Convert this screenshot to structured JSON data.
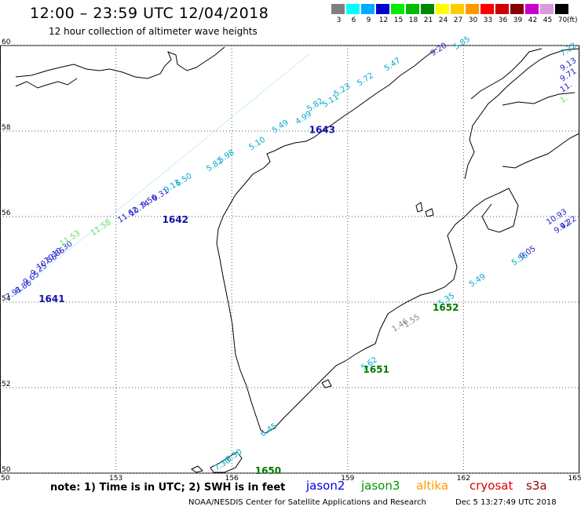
{
  "header": {
    "title": "12:00 – 23:59 UTC 12/04/2018",
    "subtitle": "12 hour collection of altimeter wave heights"
  },
  "legend": {
    "unit": "(ft)",
    "bins": [
      {
        "label": "3",
        "color": "#7f7f7f"
      },
      {
        "label": "6",
        "color": "#00ffff"
      },
      {
        "label": "9",
        "color": "#00aaff"
      },
      {
        "label": "12",
        "color": "#0000cc"
      },
      {
        "label": "15",
        "color": "#00ee00"
      },
      {
        "label": "18",
        "color": "#00bb00"
      },
      {
        "label": "21",
        "color": "#008800"
      },
      {
        "label": "24",
        "color": "#ffff00"
      },
      {
        "label": "27",
        "color": "#ffcc00"
      },
      {
        "label": "30",
        "color": "#ff9900"
      },
      {
        "label": "33",
        "color": "#ff0000"
      },
      {
        "label": "36",
        "color": "#cc0000"
      },
      {
        "label": "39",
        "color": "#880000"
      },
      {
        "label": "42",
        "color": "#cc00cc"
      },
      {
        "label": "45",
        "color": "#dd99dd"
      },
      {
        "label": "70",
        "color": "#000000"
      }
    ]
  },
  "map": {
    "lon_range": [
      150,
      165
    ],
    "lat_range": [
      50,
      60
    ],
    "lon_ticks": [
      "150",
      "153",
      "156",
      "159",
      "162",
      "165"
    ],
    "lat_ticks": [
      "50",
      "52",
      "54",
      "56",
      "58",
      "60"
    ]
  },
  "tracks": [
    {
      "lon0": 150.2,
      "lat0": 54.05,
      "lon1": 158.0,
      "lat1": 59.8,
      "color": "#55ccee"
    }
  ],
  "observations": [
    {
      "text": "7.91",
      "lon": 150.2,
      "lat": 54.05,
      "color": "#2222cc"
    },
    {
      "text": "8.86",
      "lon": 150.45,
      "lat": 54.2,
      "color": "#2222cc"
    },
    {
      "text": "9.65",
      "lon": 150.65,
      "lat": 54.4,
      "color": "#2222cc"
    },
    {
      "text": "9.25",
      "lon": 150.85,
      "lat": 54.6,
      "color": "#2222cc"
    },
    {
      "text": "10.56",
      "lon": 151.0,
      "lat": 54.75,
      "color": "#2222cc"
    },
    {
      "text": "10.86",
      "lon": 151.2,
      "lat": 54.9,
      "color": "#2222cc"
    },
    {
      "text": "10.30",
      "lon": 151.4,
      "lat": 55.05,
      "color": "#2222cc"
    },
    {
      "text": "11.53",
      "lon": 151.6,
      "lat": 55.3,
      "color": "#66dd66"
    },
    {
      "text": "11.58",
      "lon": 152.4,
      "lat": 55.55,
      "color": "#66dd66"
    },
    {
      "text": "11.62",
      "lon": 153.1,
      "lat": 55.85,
      "color": "#2222cc"
    },
    {
      "text": "10.74",
      "lon": 153.4,
      "lat": 56.0,
      "color": "#2222cc"
    },
    {
      "text": "9.56",
      "lon": 153.7,
      "lat": 56.2,
      "color": "#2222cc"
    },
    {
      "text": "9.31",
      "lon": 154.0,
      "lat": 56.35,
      "color": "#2222cc"
    },
    {
      "text": "9.13",
      "lon": 154.3,
      "lat": 56.55,
      "color": "#00aacc"
    },
    {
      "text": "6.50",
      "lon": 154.6,
      "lat": 56.7,
      "color": "#00aacc"
    },
    {
      "text": "5.82",
      "lon": 155.4,
      "lat": 57.05,
      "color": "#00aacc"
    },
    {
      "text": "5.98",
      "lon": 155.7,
      "lat": 57.25,
      "color": "#00aacc"
    },
    {
      "text": "5.10",
      "lon": 156.5,
      "lat": 57.55,
      "color": "#00aacc"
    },
    {
      "text": "5.49",
      "lon": 157.1,
      "lat": 57.95,
      "color": "#00aacc"
    },
    {
      "text": "4.99",
      "lon": 157.7,
      "lat": 58.15,
      "color": "#00aacc"
    },
    {
      "text": "5.11",
      "lon": 158.4,
      "lat": 58.55,
      "color": "#00aacc"
    },
    {
      "text": "5.82",
      "lon": 158.0,
      "lat": 58.45,
      "color": "#00aacc"
    },
    {
      "text": "5.23",
      "lon": 158.7,
      "lat": 58.8,
      "color": "#00aacc"
    },
    {
      "text": "5.72",
      "lon": 159.3,
      "lat": 59.05,
      "color": "#00aacc"
    },
    {
      "text": "5.47",
      "lon": 160.0,
      "lat": 59.4,
      "color": "#00aacc"
    },
    {
      "text": "9.20",
      "lon": 161.2,
      "lat": 59.75,
      "color": "#2222cc"
    },
    {
      "text": "5.85",
      "lon": 161.8,
      "lat": 59.9,
      "color": "#00aacc"
    },
    {
      "text": "6.45",
      "lon": 156.8,
      "lat": 50.85,
      "color": "#00aacc"
    },
    {
      "text": "6.50",
      "lon": 155.9,
      "lat": 50.25,
      "color": "#00aacc"
    },
    {
      "text": "7.30",
      "lon": 155.6,
      "lat": 50.05,
      "color": "#00aacc"
    },
    {
      "text": "5.62",
      "lon": 159.4,
      "lat": 52.4,
      "color": "#00aacc"
    },
    {
      "text": "1.46",
      "lon": 160.2,
      "lat": 53.3,
      "color": "#888888"
    },
    {
      "text": "1.55",
      "lon": 160.5,
      "lat": 53.4,
      "color": "#888888"
    },
    {
      "text": "5.35",
      "lon": 161.4,
      "lat": 53.9,
      "color": "#00aacc"
    },
    {
      "text": "5.49",
      "lon": 162.2,
      "lat": 54.35,
      "color": "#00aacc"
    },
    {
      "text": "5.58",
      "lon": 163.3,
      "lat": 54.85,
      "color": "#00aacc"
    },
    {
      "text": "9.05",
      "lon": 163.5,
      "lat": 55.0,
      "color": "#2222cc"
    },
    {
      "text": "9.42",
      "lon": 164.4,
      "lat": 55.6,
      "color": "#2222cc"
    },
    {
      "text": "9.22",
      "lon": 164.6,
      "lat": 55.7,
      "color": "#2222cc"
    },
    {
      "text": "10.93",
      "lon": 164.2,
      "lat": 55.8,
      "color": "#2222cc"
    },
    {
      "text": "7.32",
      "lon": 164.6,
      "lat": 59.75,
      "color": "#00aacc"
    },
    {
      "text": "9.13",
      "lon": 164.8,
      "lat": 59.4,
      "color": "#2222cc"
    },
    {
      "text": "9.71",
      "lon": 164.7,
      "lat": 59.15,
      "color": "#2222cc"
    },
    {
      "text": "11.",
      "lon": 164.8,
      "lat": 58.9,
      "color": "#2222cc"
    },
    {
      "text": "1.",
      "lon": 164.95,
      "lat": 58.65,
      "color": "#66dd66"
    }
  ],
  "time_labels": [
    {
      "text": "1641",
      "lon": 151.0,
      "lat": 54.0,
      "color": "#1111aa"
    },
    {
      "text": "1642",
      "lon": 154.2,
      "lat": 55.85,
      "color": "#1111aa"
    },
    {
      "text": "1643",
      "lon": 158.0,
      "lat": 57.95,
      "color": "#1111aa"
    },
    {
      "text": "1650",
      "lon": 156.6,
      "lat": 49.98,
      "color": "#007700"
    },
    {
      "text": "1651",
      "lon": 159.4,
      "lat": 52.35,
      "color": "#007700"
    },
    {
      "text": "1652",
      "lon": 161.2,
      "lat": 53.8,
      "color": "#007700"
    }
  ],
  "footer": {
    "note": "note: 1) Time is in UTC; 2) SWH is in feet",
    "satellites": [
      {
        "name": "jason2",
        "color": "#0000ee"
      },
      {
        "name": "jason3",
        "color": "#009900"
      },
      {
        "name": "altika",
        "color": "#ff9900"
      },
      {
        "name": "cryosat",
        "color": "#dd0000"
      },
      {
        "name": "s3a",
        "color": "#990000"
      }
    ],
    "credit": "NOAA/NESDIS Center for Satellite Applications and Research",
    "timestamp": "Dec  5 13:27:49 UTC 2018"
  }
}
